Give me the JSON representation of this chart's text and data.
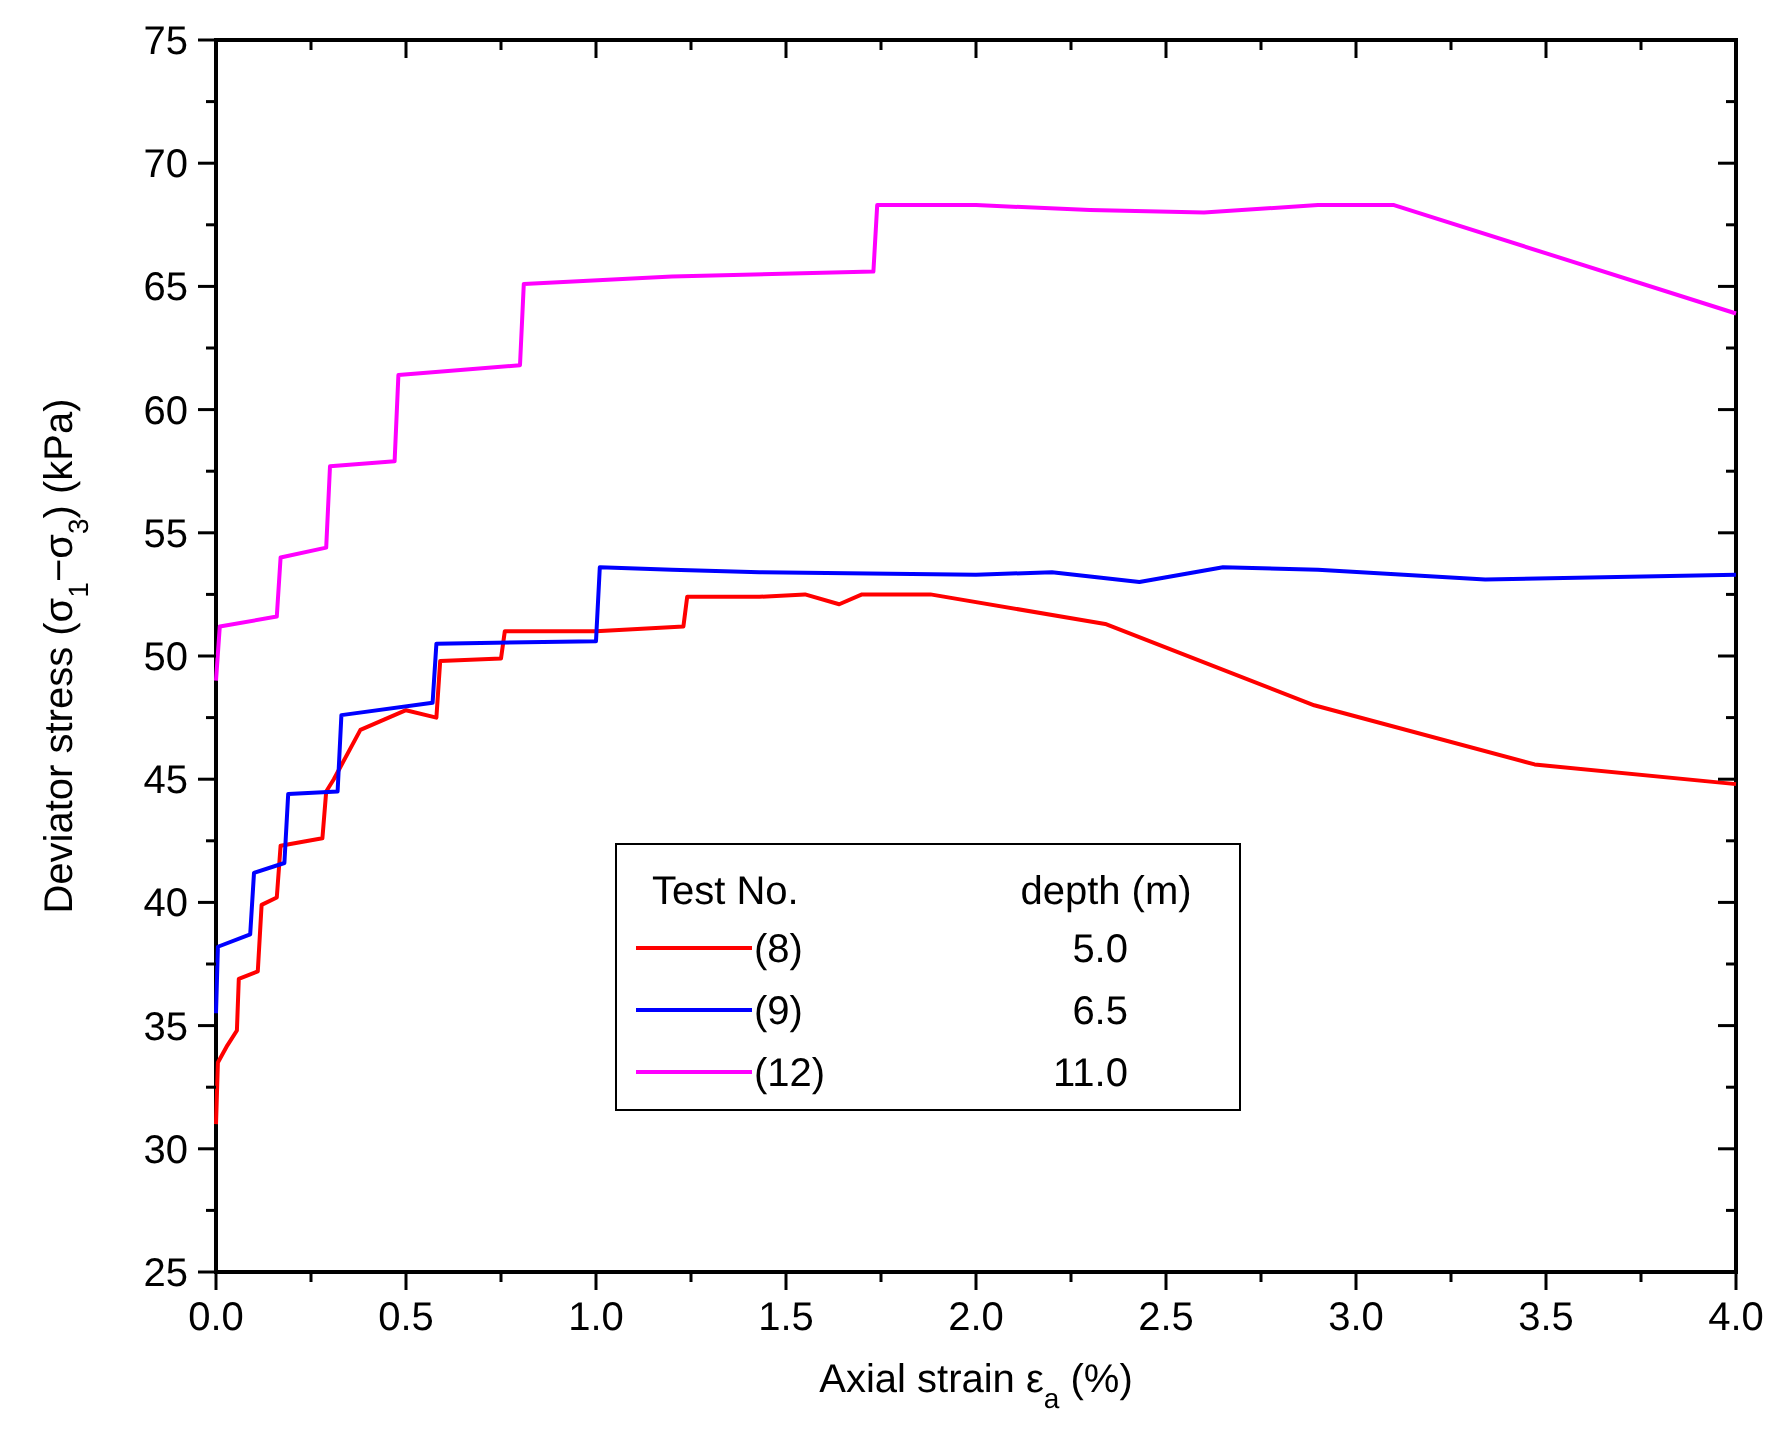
{
  "chart_data": {
    "type": "line",
    "xlabel": "Axial strain ε$_{a}$ (%)",
    "ylabel": "Deviator stress (σ$_{1}$−σ$_{3}$) (kPa)",
    "legend_title": "Test No.",
    "annotations": [
      "depth (m)",
      "5.0",
      "6.5",
      "11.0"
    ],
    "xlim": [
      0,
      4
    ],
    "ylim": [
      25,
      75
    ],
    "xticks": [
      {
        "value": 0,
        "label": "0.0"
      },
      {
        "value": 0.25,
        "label": null
      },
      {
        "value": 0.5,
        "label": "0.5"
      },
      {
        "value": 0.75,
        "label": null
      },
      {
        "value": 1,
        "label": "1.0"
      },
      {
        "value": 1.25,
        "label": null
      },
      {
        "value": 1.5,
        "label": "1.5"
      },
      {
        "value": 1.75,
        "label": null
      },
      {
        "value": 2,
        "label": "2.0"
      },
      {
        "value": 2.25,
        "label": null
      },
      {
        "value": 2.5,
        "label": "2.5"
      },
      {
        "value": 2.75,
        "label": null
      },
      {
        "value": 3,
        "label": "3.0"
      },
      {
        "value": 3.25,
        "label": null
      },
      {
        "value": 3.5,
        "label": "3.5"
      },
      {
        "value": 3.75,
        "label": null
      },
      {
        "value": 4,
        "label": "4.0"
      }
    ],
    "yticks": [
      25,
      {
        "value": 27.5,
        "label": null
      },
      30,
      {
        "value": 32.5,
        "label": null
      },
      35,
      {
        "value": 37.5,
        "label": null
      },
      40,
      {
        "value": 42.5,
        "label": null
      },
      45,
      {
        "value": 47.5,
        "label": null
      },
      50,
      {
        "value": 52.5,
        "label": null
      },
      55,
      {
        "value": 57.5,
        "label": null
      },
      60,
      {
        "value": 62.5,
        "label": null
      },
      65,
      {
        "value": 67.5,
        "label": null
      },
      70,
      {
        "value": 72.5,
        "label": null
      },
      75
    ],
    "grid": false,
    "legend": "bottom",
    "marker": "none",
    "line_style": "solid",
    "series": [
      {
        "name": "(8)",
        "color": "#ff0000",
        "x": [
          0,
          0.005,
          0.03,
          0.055,
          0.06,
          0.11,
          0.12,
          0.16,
          0.17,
          0.28,
          0.29,
          0.31,
          0.38,
          0.5,
          0.58,
          0.59,
          0.75,
          0.76,
          1.0,
          1.23,
          1.24,
          1.43,
          1.55,
          1.64,
          1.7,
          1.88,
          2.34,
          2.89,
          3.47,
          4.0
        ],
        "values": [
          31,
          33.5,
          34.2,
          34.8,
          36.9,
          37.2,
          39.9,
          40.2,
          42.3,
          42.6,
          44.5,
          45.0,
          47.0,
          47.8,
          47.5,
          49.8,
          49.9,
          51.0,
          51.0,
          51.2,
          52.4,
          52.4,
          52.5,
          52.1,
          52.5,
          52.5,
          51.3,
          48.0,
          45.6,
          44.8
        ]
      },
      {
        "name": "(9)",
        "color": "#0000ff",
        "x": [
          0,
          0.005,
          0.09,
          0.1,
          0.18,
          0.19,
          0.32,
          0.33,
          0.57,
          0.58,
          1.0,
          1.01,
          1.2,
          1.43,
          2.0,
          2.2,
          2.43,
          2.65,
          2.9,
          3.34,
          4.0
        ],
        "values": [
          35.5,
          38.2,
          38.7,
          41.2,
          41.6,
          44.4,
          44.5,
          47.6,
          48.1,
          50.5,
          50.6,
          53.6,
          53.5,
          53.4,
          53.3,
          53.4,
          53.0,
          53.6,
          53.5,
          53.1,
          53.3
        ]
      },
      {
        "name": "(12)",
        "color": "#ff00ff",
        "x": [
          0,
          0.01,
          0.16,
          0.17,
          0.29,
          0.3,
          0.47,
          0.48,
          0.8,
          0.81,
          1.2,
          1.73,
          1.74,
          2.0,
          2.3,
          2.6,
          2.9,
          3.1,
          4.0
        ],
        "values": [
          49,
          51.2,
          51.6,
          54.0,
          54.4,
          57.7,
          57.9,
          61.4,
          61.8,
          65.1,
          65.4,
          65.6,
          68.3,
          68.3,
          68.1,
          68.0,
          68.3,
          68.3,
          63.9
        ]
      }
    ]
  }
}
